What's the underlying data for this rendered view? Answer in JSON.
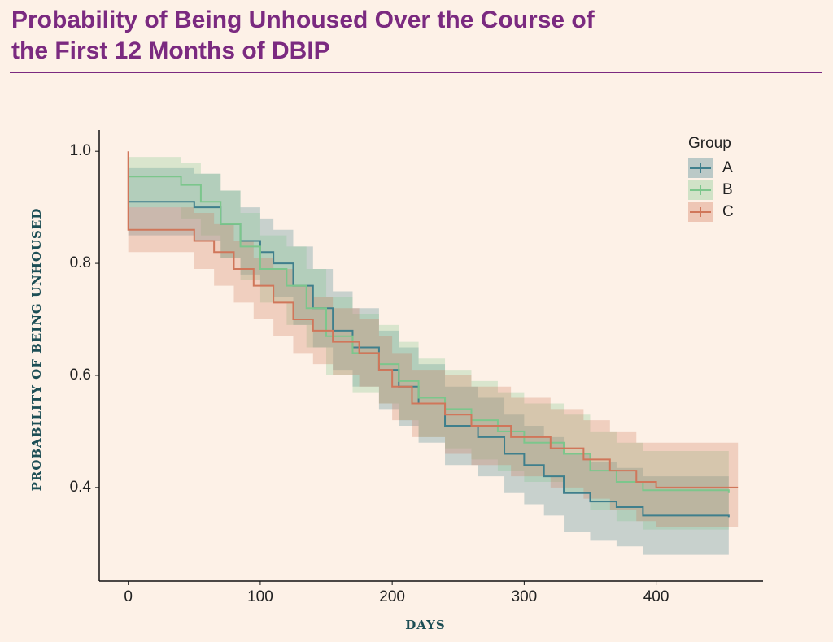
{
  "chart_data": {
    "type": "step",
    "title": "Probability of Being Unhoused Over the Course of the First 12 Months of DBIP",
    "x_label": "DAYS",
    "y_label": "PROBABILITY OF BEING UNHOUSED",
    "legend_title": "Group",
    "legend_position": "top-right",
    "xlim": [
      -22,
      481
    ],
    "xticks": [
      0,
      100,
      200,
      300,
      400
    ],
    "ylim": [
      0.233,
      1.038
    ],
    "yticks": [
      0.4,
      0.6,
      0.8,
      {
        "value": 1,
        "label": "1.0"
      }
    ],
    "grid": false,
    "series": [
      {
        "name": "A",
        "color": "#3f7f8c",
        "x": [
          0,
          40,
          50,
          70,
          85,
          100,
          110,
          125,
          140,
          155,
          170,
          190,
          205,
          220,
          240,
          265,
          285,
          300,
          315,
          330,
          350,
          370,
          390,
          455
        ],
        "values": [
          0.91,
          0.91,
          0.9,
          0.87,
          0.84,
          0.82,
          0.8,
          0.76,
          0.72,
          0.68,
          0.65,
          0.61,
          0.58,
          0.55,
          0.51,
          0.49,
          0.46,
          0.44,
          0.42,
          0.39,
          0.375,
          0.365,
          0.35,
          0.347
        ],
        "upper": [
          0.97,
          0.97,
          0.96,
          0.93,
          0.9,
          0.88,
          0.86,
          0.83,
          0.79,
          0.75,
          0.72,
          0.68,
          0.65,
          0.62,
          0.58,
          0.56,
          0.53,
          0.51,
          0.49,
          0.46,
          0.445,
          0.435,
          0.42,
          0.42
        ],
        "lower": [
          0.85,
          0.85,
          0.84,
          0.81,
          0.78,
          0.76,
          0.74,
          0.69,
          0.65,
          0.61,
          0.58,
          0.54,
          0.51,
          0.48,
          0.44,
          0.42,
          0.39,
          0.37,
          0.35,
          0.32,
          0.305,
          0.295,
          0.28,
          0.28
        ]
      },
      {
        "name": "B",
        "color": "#7cc68c",
        "x": [
          0,
          30,
          40,
          55,
          70,
          85,
          100,
          120,
          135,
          150,
          170,
          190,
          205,
          220,
          240,
          260,
          280,
          300,
          330,
          350,
          370,
          390,
          455
        ],
        "values": [
          0.955,
          0.955,
          0.94,
          0.91,
          0.87,
          0.83,
          0.79,
          0.76,
          0.72,
          0.67,
          0.64,
          0.62,
          0.59,
          0.56,
          0.54,
          0.52,
          0.5,
          0.48,
          0.46,
          0.43,
          0.41,
          0.395,
          0.39
        ],
        "upper": [
          0.99,
          0.99,
          0.98,
          0.96,
          0.93,
          0.89,
          0.85,
          0.83,
          0.79,
          0.74,
          0.71,
          0.69,
          0.66,
          0.63,
          0.61,
          0.59,
          0.57,
          0.55,
          0.53,
          0.5,
          0.48,
          0.465,
          0.46
        ],
        "lower": [
          0.9,
          0.9,
          0.88,
          0.85,
          0.81,
          0.77,
          0.73,
          0.69,
          0.65,
          0.6,
          0.57,
          0.55,
          0.52,
          0.49,
          0.47,
          0.45,
          0.43,
          0.41,
          0.39,
          0.36,
          0.34,
          0.325,
          0.32
        ]
      },
      {
        "name": "C",
        "color": "#d0765a",
        "x": [
          0,
          0,
          40,
          50,
          65,
          80,
          95,
          110,
          125,
          140,
          155,
          175,
          190,
          200,
          215,
          240,
          260,
          290,
          320,
          345,
          365,
          385,
          400,
          462
        ],
        "values": [
          1.0,
          0.86,
          0.86,
          0.84,
          0.82,
          0.79,
          0.76,
          0.73,
          0.7,
          0.68,
          0.66,
          0.64,
          0.61,
          0.58,
          0.55,
          0.53,
          0.51,
          0.49,
          0.47,
          0.45,
          0.43,
          0.41,
          0.4,
          0.4
        ],
        "upper": [
          1.0,
          0.9,
          0.9,
          0.89,
          0.87,
          0.84,
          0.81,
          0.79,
          0.76,
          0.74,
          0.72,
          0.7,
          0.67,
          0.64,
          0.61,
          0.6,
          0.58,
          0.56,
          0.54,
          0.52,
          0.5,
          0.48,
          0.48,
          0.48
        ],
        "lower": [
          0.82,
          0.82,
          0.82,
          0.79,
          0.76,
          0.73,
          0.7,
          0.67,
          0.64,
          0.62,
          0.6,
          0.58,
          0.55,
          0.52,
          0.49,
          0.46,
          0.44,
          0.42,
          0.4,
          0.38,
          0.36,
          0.34,
          0.33,
          0.33
        ]
      }
    ]
  }
}
